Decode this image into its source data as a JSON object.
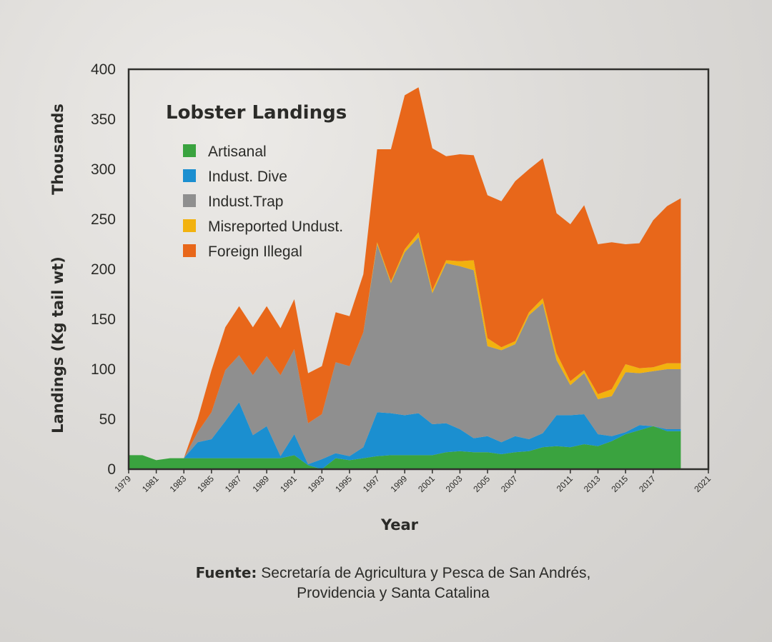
{
  "chart_data": {
    "type": "area",
    "stacked": true,
    "title": "Lobster Landings",
    "xlabel": "Year",
    "ylabel": "Landings (Kg tail wt)",
    "ylabel_unit": "Thousands",
    "ylim": [
      0,
      400
    ],
    "yticks": [
      0,
      50,
      100,
      150,
      200,
      250,
      300,
      350,
      400
    ],
    "xlim": [
      1979,
      2021
    ],
    "xticks": [
      1979,
      1981,
      1983,
      1985,
      1987,
      1989,
      1991,
      1993,
      1995,
      1997,
      1999,
      2001,
      2003,
      2005,
      2007,
      2011,
      2013,
      2015,
      2017,
      2021
    ],
    "legend_position": "top-left",
    "x": [
      1979,
      1980,
      1981,
      1982,
      1983,
      1984,
      1985,
      1986,
      1987,
      1988,
      1989,
      1990,
      1991,
      1992,
      1993,
      1994,
      1995,
      1996,
      1997,
      1998,
      1999,
      2000,
      2001,
      2002,
      2003,
      2004,
      2005,
      2006,
      2007,
      2008,
      2009,
      2010,
      2011,
      2012,
      2013,
      2014,
      2015,
      2016,
      2017,
      2018,
      2019
    ],
    "series": [
      {
        "name": "Artisanal",
        "color": "#3aa33f",
        "values": [
          14,
          14,
          9,
          11,
          11,
          11,
          11,
          11,
          11,
          11,
          11,
          11,
          14,
          4,
          0,
          11,
          9,
          11,
          13,
          14,
          14,
          14,
          14,
          17,
          18,
          17,
          17,
          15,
          17,
          18,
          22,
          23,
          22,
          25,
          23,
          28,
          35,
          39,
          43,
          38,
          38
        ]
      },
      {
        "name": "Indust. Dive",
        "color": "#1b8fd0",
        "values": [
          0,
          0,
          0,
          0,
          0,
          16,
          19,
          37,
          56,
          23,
          32,
          2,
          21,
          1,
          10,
          5,
          4,
          11,
          44,
          42,
          40,
          42,
          31,
          29,
          22,
          14,
          16,
          12,
          16,
          12,
          14,
          31,
          32,
          30,
          12,
          5,
          2,
          5,
          0,
          2,
          2
        ]
      },
      {
        "name": "Indust.Trap",
        "color": "#8f8f8f",
        "values": [
          0,
          0,
          0,
          0,
          0,
          10,
          27,
          51,
          47,
          60,
          70,
          81,
          85,
          41,
          45,
          91,
          90,
          115,
          168,
          130,
          163,
          176,
          131,
          160,
          163,
          168,
          90,
          92,
          92,
          124,
          130,
          55,
          30,
          41,
          35,
          40,
          60,
          52,
          55,
          60,
          60
        ]
      },
      {
        "name": "Misreported Undust.",
        "color": "#f2b20f",
        "values": [
          0,
          0,
          0,
          0,
          0,
          0,
          0,
          0,
          0,
          0,
          0,
          0,
          0,
          0,
          0,
          0,
          0,
          0,
          2,
          2,
          3,
          5,
          3,
          3,
          5,
          10,
          8,
          3,
          3,
          3,
          5,
          7,
          4,
          3,
          5,
          7,
          8,
          5,
          4,
          6,
          6
        ]
      },
      {
        "name": "Foreign Illegal",
        "color": "#e8671a",
        "values": [
          0,
          0,
          0,
          0,
          0,
          13,
          42,
          43,
          49,
          48,
          50,
          47,
          50,
          50,
          48,
          50,
          50,
          58,
          93,
          132,
          154,
          145,
          142,
          104,
          107,
          105,
          143,
          146,
          160,
          143,
          140,
          140,
          157,
          165,
          150,
          147,
          120,
          125,
          147,
          157,
          165
        ]
      }
    ]
  },
  "source": {
    "label": "Fuente:",
    "line1": "Secretaría de Agricultura y Pesca de San Andrés,",
    "line2": "Providencia y Santa Catalina"
  }
}
